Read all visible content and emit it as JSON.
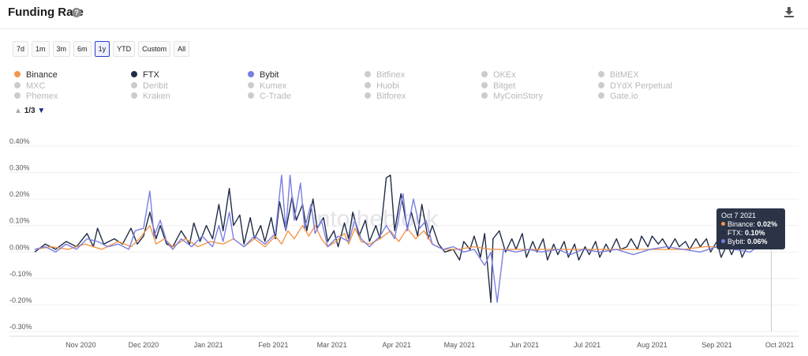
{
  "header": {
    "title": "Funding Rate",
    "help_icon": "help-icon",
    "download_icon": "download-icon"
  },
  "ranges": [
    {
      "label": "7d",
      "active": false
    },
    {
      "label": "1m",
      "active": false
    },
    {
      "label": "3m",
      "active": false
    },
    {
      "label": "6m",
      "active": false
    },
    {
      "label": "1y",
      "active": true
    },
    {
      "label": "YTD",
      "active": false
    },
    {
      "label": "Custom",
      "active": false
    },
    {
      "label": "All",
      "active": false
    }
  ],
  "legend": {
    "rows": [
      [
        {
          "name": "Binance",
          "color": "#f4954a",
          "on": true
        },
        {
          "name": "FTX",
          "color": "#1f2d47",
          "on": true
        },
        {
          "name": "Bybit",
          "color": "#7a7fe3",
          "on": true
        },
        {
          "name": "Bitfinex",
          "color": "#cccccc",
          "on": false
        },
        {
          "name": "OKEx",
          "color": "#cccccc",
          "on": false
        },
        {
          "name": "BitMEX",
          "color": "#cccccc",
          "on": false
        }
      ],
      [
        {
          "name": "MXC",
          "color": "#cccccc",
          "on": false
        },
        {
          "name": "Deribit",
          "color": "#cccccc",
          "on": false
        },
        {
          "name": "Kumex",
          "color": "#cccccc",
          "on": false
        },
        {
          "name": "Huobi",
          "color": "#cccccc",
          "on": false
        },
        {
          "name": "Bitget",
          "color": "#cccccc",
          "on": false
        },
        {
          "name": "DYdX Perpetual",
          "color": "#cccccc",
          "on": false
        }
      ],
      [
        {
          "name": "Phemex",
          "color": "#cccccc",
          "on": false
        },
        {
          "name": "Kraken",
          "color": "#cccccc",
          "on": false
        },
        {
          "name": "C-Trade",
          "color": "#cccccc",
          "on": false
        },
        {
          "name": "Bitforex",
          "color": "#cccccc",
          "on": false
        },
        {
          "name": "MyCoinStory",
          "color": "#cccccc",
          "on": false
        },
        {
          "name": "Gate.io",
          "color": "#cccccc",
          "on": false
        }
      ]
    ],
    "pager": "1/3"
  },
  "watermark": "intotheblock",
  "tooltip": {
    "date": "Oct 7 2021",
    "items": [
      {
        "label": "Binance:",
        "value": "0.02%",
        "color": "#f4954a"
      },
      {
        "label": "FTX:",
        "value": "0.10%",
        "color": "#1f2d47"
      },
      {
        "label": "Bybit:",
        "value": "0.06%",
        "color": "#7a7fe3"
      }
    ]
  },
  "chart_data": {
    "type": "line",
    "title": "Funding Rate",
    "xlabel": "",
    "ylabel": "",
    "ylim": [
      -0.3,
      0.4
    ],
    "y_ticks": [
      "0.40%",
      "0.30%",
      "0.20%",
      "0.10%",
      "0.00%",
      "-0.10%",
      "-0.20%",
      "-0.30%"
    ],
    "y_tick_values": [
      0.4,
      0.3,
      0.2,
      0.1,
      0.0,
      -0.1,
      -0.2,
      -0.3
    ],
    "x_ticks": [
      "Nov 2020",
      "Dec 2020",
      "Jan 2021",
      "Feb 2021",
      "Mar 2021",
      "Apr 2021",
      "May 2021",
      "Jun 2021",
      "Jul 2021",
      "Aug 2021",
      "Sep 2021",
      "Oct 2021"
    ],
    "x_tick_day_offsets": [
      22,
      52,
      83,
      114,
      142,
      173,
      203,
      234,
      264,
      295,
      326,
      356
    ],
    "x_start": "Oct 10 2020",
    "x_end": "Oct 9 2021",
    "legend_position": "top",
    "series": [
      {
        "name": "FTX",
        "color": "#1f2d47",
        "points": [
          [
            0,
            0.0
          ],
          [
            5,
            0.03
          ],
          [
            10,
            0.01
          ],
          [
            15,
            0.04
          ],
          [
            20,
            0.02
          ],
          [
            25,
            0.07
          ],
          [
            28,
            0.02
          ],
          [
            30,
            0.09
          ],
          [
            33,
            0.03
          ],
          [
            38,
            0.05
          ],
          [
            42,
            0.03
          ],
          [
            46,
            0.09
          ],
          [
            49,
            0.03
          ],
          [
            52,
            0.06
          ],
          [
            55,
            0.15
          ],
          [
            58,
            0.05
          ],
          [
            60,
            0.1
          ],
          [
            63,
            0.03
          ],
          [
            66,
            0.02
          ],
          [
            70,
            0.08
          ],
          [
            74,
            0.03
          ],
          [
            76,
            0.11
          ],
          [
            79,
            0.04
          ],
          [
            82,
            0.1
          ],
          [
            85,
            0.05
          ],
          [
            88,
            0.18
          ],
          [
            90,
            0.08
          ],
          [
            93,
            0.24
          ],
          [
            95,
            0.1
          ],
          [
            98,
            0.14
          ],
          [
            100,
            0.03
          ],
          [
            103,
            0.13
          ],
          [
            105,
            0.05
          ],
          [
            108,
            0.1
          ],
          [
            110,
            0.04
          ],
          [
            113,
            0.13
          ],
          [
            115,
            0.05
          ],
          [
            117,
            0.19
          ],
          [
            120,
            0.08
          ],
          [
            123,
            0.21
          ],
          [
            125,
            0.12
          ],
          [
            128,
            0.18
          ],
          [
            130,
            0.08
          ],
          [
            133,
            0.2
          ],
          [
            135,
            0.09
          ],
          [
            138,
            0.13
          ],
          [
            140,
            0.04
          ],
          [
            143,
            0.08
          ],
          [
            145,
            0.02
          ],
          [
            148,
            0.11
          ],
          [
            150,
            0.05
          ],
          [
            152,
            0.15
          ],
          [
            155,
            0.06
          ],
          [
            158,
            0.12
          ],
          [
            160,
            0.04
          ],
          [
            163,
            0.1
          ],
          [
            165,
            0.05
          ],
          [
            168,
            0.28
          ],
          [
            170,
            0.29
          ],
          [
            172,
            0.08
          ],
          [
            175,
            0.22
          ],
          [
            178,
            0.09
          ],
          [
            180,
            0.15
          ],
          [
            183,
            0.06
          ],
          [
            185,
            0.18
          ],
          [
            188,
            0.05
          ],
          [
            190,
            0.1
          ],
          [
            193,
            0.03
          ],
          [
            196,
            0.0
          ],
          [
            200,
            0.01
          ],
          [
            203,
            -0.03
          ],
          [
            205,
            0.04
          ],
          [
            208,
            0.01
          ],
          [
            210,
            0.06
          ],
          [
            213,
            -0.02
          ],
          [
            215,
            0.07
          ],
          [
            218,
            -0.19
          ],
          [
            219,
            0.05
          ],
          [
            222,
            0.08
          ],
          [
            225,
            0.0
          ],
          [
            228,
            0.05
          ],
          [
            230,
            0.01
          ],
          [
            233,
            0.07
          ],
          [
            235,
            -0.02
          ],
          [
            238,
            0.04
          ],
          [
            240,
            0.0
          ],
          [
            243,
            0.05
          ],
          [
            245,
            -0.03
          ],
          [
            248,
            0.03
          ],
          [
            250,
            -0.01
          ],
          [
            253,
            0.04
          ],
          [
            255,
            -0.02
          ],
          [
            258,
            0.03
          ],
          [
            260,
            -0.03
          ],
          [
            263,
            0.02
          ],
          [
            265,
            -0.01
          ],
          [
            268,
            0.04
          ],
          [
            270,
            -0.02
          ],
          [
            273,
            0.03
          ],
          [
            275,
            0.0
          ],
          [
            278,
            0.05
          ],
          [
            280,
            0.01
          ],
          [
            283,
            0.02
          ],
          [
            285,
            0.05
          ],
          [
            288,
            0.01
          ],
          [
            290,
            0.06
          ],
          [
            293,
            0.02
          ],
          [
            295,
            0.06
          ],
          [
            298,
            0.03
          ],
          [
            300,
            0.05
          ],
          [
            303,
            0.01
          ],
          [
            306,
            0.05
          ],
          [
            308,
            0.02
          ],
          [
            311,
            0.04
          ],
          [
            313,
            0.01
          ],
          [
            316,
            0.05
          ],
          [
            318,
            0.02
          ],
          [
            321,
            0.05
          ],
          [
            323,
            0.0
          ],
          [
            326,
            0.04
          ],
          [
            328,
            -0.02
          ],
          [
            331,
            0.03
          ],
          [
            333,
            -0.01
          ],
          [
            336,
            0.04
          ],
          [
            338,
            -0.02
          ],
          [
            341,
            0.03
          ],
          [
            343,
            0.02
          ],
          [
            346,
            0.05
          ],
          [
            349,
            0.04
          ],
          [
            352,
            0.1
          ]
        ]
      },
      {
        "name": "Binance",
        "color": "#f4954a",
        "points": [
          [
            0,
            0.01
          ],
          [
            8,
            0.02
          ],
          [
            16,
            0.01
          ],
          [
            24,
            0.03
          ],
          [
            32,
            0.01
          ],
          [
            40,
            0.04
          ],
          [
            46,
            0.02
          ],
          [
            50,
            0.05
          ],
          [
            55,
            0.1
          ],
          [
            58,
            0.03
          ],
          [
            62,
            0.05
          ],
          [
            66,
            0.02
          ],
          [
            72,
            0.05
          ],
          [
            78,
            0.02
          ],
          [
            84,
            0.04
          ],
          [
            90,
            0.03
          ],
          [
            95,
            0.05
          ],
          [
            100,
            0.02
          ],
          [
            105,
            0.05
          ],
          [
            110,
            0.02
          ],
          [
            115,
            0.06
          ],
          [
            118,
            0.03
          ],
          [
            121,
            0.08
          ],
          [
            124,
            0.05
          ],
          [
            128,
            0.1
          ],
          [
            131,
            0.06
          ],
          [
            134,
            0.1
          ],
          [
            137,
            0.05
          ],
          [
            140,
            0.02
          ],
          [
            144,
            0.04
          ],
          [
            148,
            0.07
          ],
          [
            150,
            0.03
          ],
          [
            153,
            0.09
          ],
          [
            156,
            0.04
          ],
          [
            160,
            0.03
          ],
          [
            165,
            0.05
          ],
          [
            170,
            0.08
          ],
          [
            174,
            0.04
          ],
          [
            178,
            0.09
          ],
          [
            182,
            0.05
          ],
          [
            186,
            0.08
          ],
          [
            190,
            0.03
          ],
          [
            195,
            0.01
          ],
          [
            202,
            0.01
          ],
          [
            210,
            0.02
          ],
          [
            218,
            0.01
          ],
          [
            226,
            0.01
          ],
          [
            234,
            0.01
          ],
          [
            242,
            0.01
          ],
          [
            250,
            0.01
          ],
          [
            260,
            0.01
          ],
          [
            270,
            0.01
          ],
          [
            280,
            0.01
          ],
          [
            290,
            0.01
          ],
          [
            300,
            0.01
          ],
          [
            310,
            0.01
          ],
          [
            320,
            0.02
          ],
          [
            330,
            0.02
          ],
          [
            340,
            0.02
          ],
          [
            352,
            0.02
          ]
        ]
      },
      {
        "name": "Bybit",
        "color": "#7a7fe3",
        "points": [
          [
            0,
            0.01
          ],
          [
            5,
            0.02
          ],
          [
            10,
            0.0
          ],
          [
            15,
            0.03
          ],
          [
            20,
            0.01
          ],
          [
            25,
            0.05
          ],
          [
            30,
            0.04
          ],
          [
            35,
            0.02
          ],
          [
            40,
            0.03
          ],
          [
            45,
            0.01
          ],
          [
            48,
            0.08
          ],
          [
            52,
            0.09
          ],
          [
            55,
            0.23
          ],
          [
            57,
            0.06
          ],
          [
            60,
            0.12
          ],
          [
            63,
            0.04
          ],
          [
            66,
            0.01
          ],
          [
            70,
            0.05
          ],
          [
            75,
            0.02
          ],
          [
            80,
            0.06
          ],
          [
            85,
            0.02
          ],
          [
            88,
            0.1
          ],
          [
            90,
            0.04
          ],
          [
            93,
            0.15
          ],
          [
            95,
            0.05
          ],
          [
            100,
            0.02
          ],
          [
            105,
            0.06
          ],
          [
            110,
            0.03
          ],
          [
            115,
            0.07
          ],
          [
            118,
            0.29
          ],
          [
            120,
            0.08
          ],
          [
            122,
            0.29
          ],
          [
            124,
            0.12
          ],
          [
            127,
            0.26
          ],
          [
            129,
            0.09
          ],
          [
            132,
            0.18
          ],
          [
            134,
            0.07
          ],
          [
            137,
            0.12
          ],
          [
            140,
            0.02
          ],
          [
            145,
            0.06
          ],
          [
            150,
            0.04
          ],
          [
            153,
            0.12
          ],
          [
            156,
            0.05
          ],
          [
            160,
            0.02
          ],
          [
            165,
            0.06
          ],
          [
            168,
            0.1
          ],
          [
            172,
            0.05
          ],
          [
            176,
            0.22
          ],
          [
            178,
            0.08
          ],
          [
            181,
            0.2
          ],
          [
            184,
            0.09
          ],
          [
            187,
            0.12
          ],
          [
            190,
            0.03
          ],
          [
            195,
            0.01
          ],
          [
            200,
            0.02
          ],
          [
            205,
            0.0
          ],
          [
            210,
            0.01
          ],
          [
            215,
            -0.05
          ],
          [
            218,
            0.0
          ],
          [
            221,
            -0.19
          ],
          [
            224,
            0.01
          ],
          [
            230,
            0.0
          ],
          [
            236,
            0.01
          ],
          [
            242,
            0.0
          ],
          [
            250,
            0.01
          ],
          [
            256,
            -0.01
          ],
          [
            262,
            0.01
          ],
          [
            270,
            0.0
          ],
          [
            278,
            0.01
          ],
          [
            286,
            -0.01
          ],
          [
            294,
            0.01
          ],
          [
            302,
            0.02
          ],
          [
            310,
            0.01
          ],
          [
            318,
            0.0
          ],
          [
            326,
            0.02
          ],
          [
            334,
            0.01
          ],
          [
            342,
            0.0
          ],
          [
            348,
            0.04
          ],
          [
            352,
            0.06
          ]
        ]
      }
    ]
  }
}
